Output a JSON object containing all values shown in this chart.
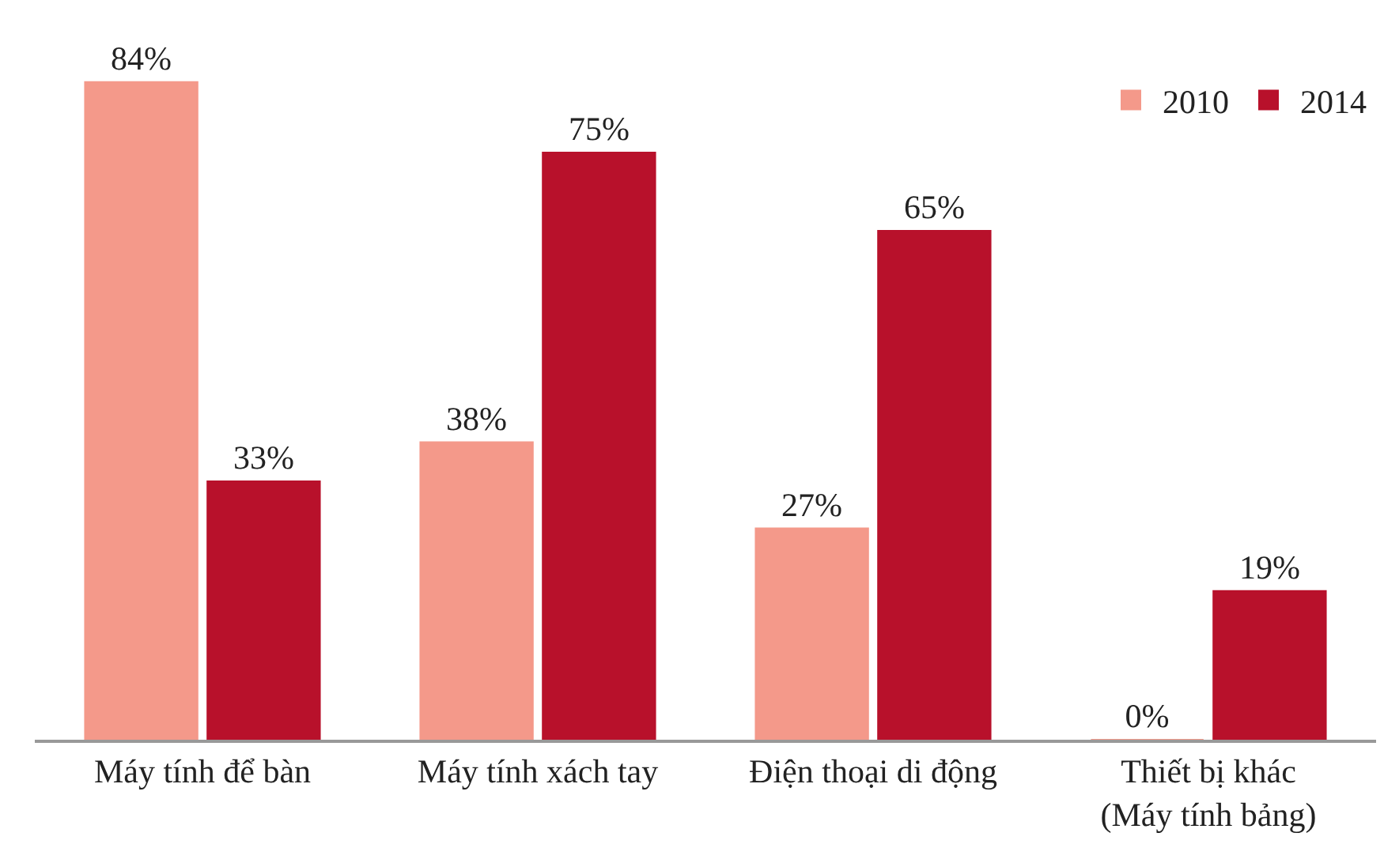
{
  "chart_data": {
    "type": "bar",
    "categories": [
      "Máy tính để bàn",
      "Máy tính xách tay",
      "Điện thoại di động",
      "Thiết bị khác\n(Máy tính bảng)"
    ],
    "series": [
      {
        "name": "2010",
        "color": "#f4998a",
        "values": [
          84,
          38,
          27,
          0
        ],
        "value_labels": [
          "84%",
          "38%",
          "27%",
          "0%"
        ]
      },
      {
        "name": "2014",
        "color": "#b8112b",
        "values": [
          33,
          75,
          65,
          19
        ],
        "value_labels": [
          "33%",
          "75%",
          "65%",
          "19%"
        ]
      }
    ],
    "legend": "top right"
  }
}
